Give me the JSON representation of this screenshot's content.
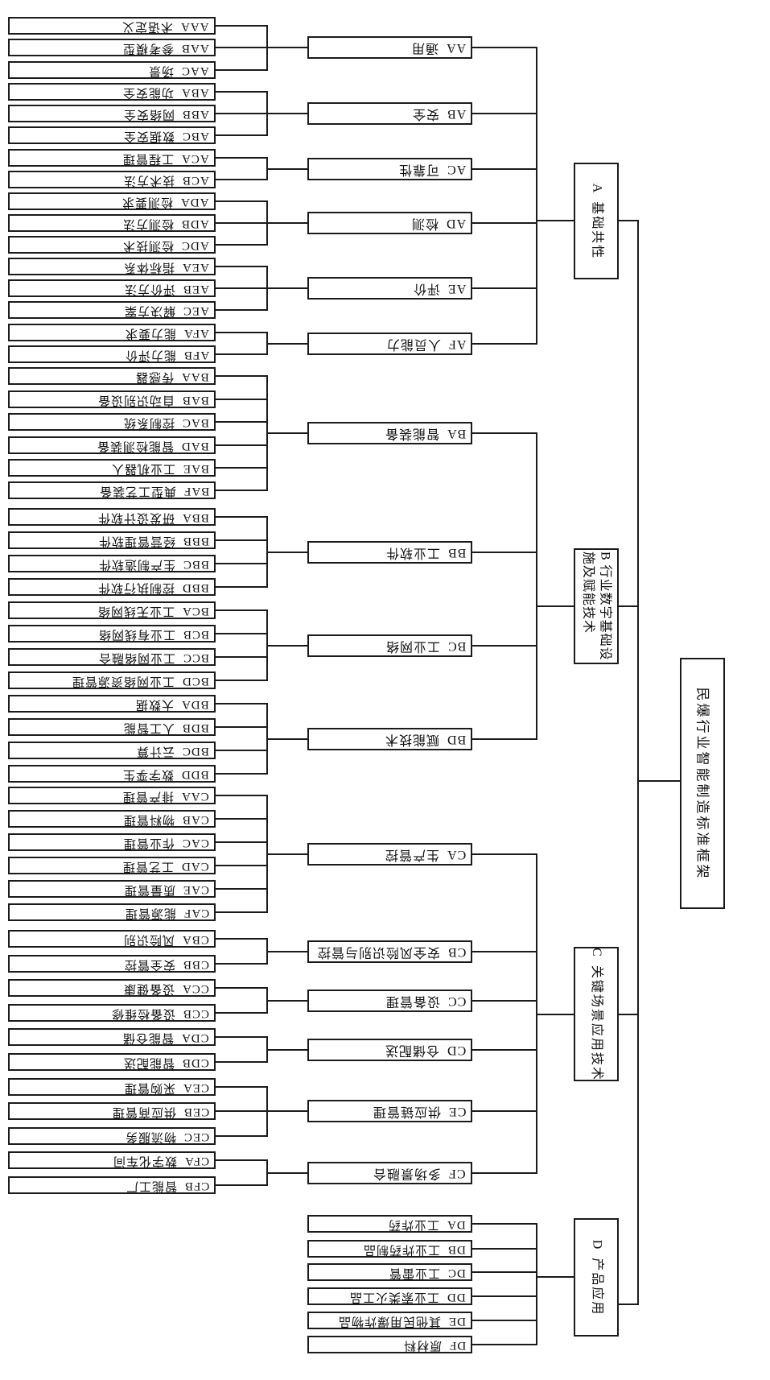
{
  "title": "民爆行业智能制造标准框架",
  "colors": {
    "background": "#ffffff",
    "line": "#1b1b1b",
    "box_border": "#1b1b1b",
    "text": "#111111"
  },
  "tree": {
    "label": "民爆行业智能制造标准框架",
    "children": [
      {
        "code": "A",
        "label": "基础共性",
        "children": [
          {
            "code": "AA",
            "label": "通用",
            "children": [
              {
                "code": "AAA",
                "label": "术语定义"
              },
              {
                "code": "AAB",
                "label": "参考模型"
              },
              {
                "code": "AAC",
                "label": "场景"
              }
            ]
          },
          {
            "code": "AB",
            "label": "安全",
            "children": [
              {
                "code": "ABA",
                "label": "功能安全"
              },
              {
                "code": "ABB",
                "label": "网络安全"
              },
              {
                "code": "ABC",
                "label": "数据安全"
              }
            ]
          },
          {
            "code": "AC",
            "label": "可靠性",
            "children": [
              {
                "code": "ACA",
                "label": "工程管理"
              },
              {
                "code": "ACB",
                "label": "技术方法"
              }
            ]
          },
          {
            "code": "AD",
            "label": "检测",
            "children": [
              {
                "code": "ADA",
                "label": "检测要求"
              },
              {
                "code": "ADB",
                "label": "检测方法"
              },
              {
                "code": "ADC",
                "label": "检测技术"
              }
            ]
          },
          {
            "code": "AE",
            "label": "评价",
            "children": [
              {
                "code": "AEA",
                "label": "指标体系"
              },
              {
                "code": "AEB",
                "label": "评价方法"
              },
              {
                "code": "AEC",
                "label": "解决方案"
              }
            ]
          },
          {
            "code": "AF",
            "label": "人员能力",
            "children": [
              {
                "code": "AFA",
                "label": "能力要求"
              },
              {
                "code": "AFB",
                "label": "能力评价"
              }
            ]
          }
        ]
      },
      {
        "code": "B",
        "label": "行业数字基础设施及赋能技术",
        "lines": [
          "B 行业数字基础设",
          "施及赋能技术"
        ],
        "children": [
          {
            "code": "BA",
            "label": "智能装备",
            "children": [
              {
                "code": "BAA",
                "label": "传感器"
              },
              {
                "code": "BAB",
                "label": "自动识别设备"
              },
              {
                "code": "BAC",
                "label": "控制系统"
              },
              {
                "code": "BAD",
                "label": "智能检测装备"
              },
              {
                "code": "BAE",
                "label": "工业机器人"
              },
              {
                "code": "BAF",
                "label": "典型工艺装备"
              }
            ]
          },
          {
            "code": "BB",
            "label": "工业软件",
            "children": [
              {
                "code": "BBA",
                "label": "研发设计软件"
              },
              {
                "code": "BBB",
                "label": "经营管理软件"
              },
              {
                "code": "BBC",
                "label": "生产制造软件"
              },
              {
                "code": "BBD",
                "label": "控制执行软件"
              }
            ]
          },
          {
            "code": "BC",
            "label": "工业网络",
            "children": [
              {
                "code": "BCA",
                "label": "工业无线网络"
              },
              {
                "code": "BCB",
                "label": "工业有线网络"
              },
              {
                "code": "BCC",
                "label": "工业网络融合"
              },
              {
                "code": "BCD",
                "label": "工业网络资源管理"
              }
            ]
          },
          {
            "code": "BD",
            "label": "赋能技术",
            "children": [
              {
                "code": "BDA",
                "label": "大数据"
              },
              {
                "code": "BDB",
                "label": "人工智能"
              },
              {
                "code": "BDC",
                "label": "云计算"
              },
              {
                "code": "BDD",
                "label": "数字孪生"
              }
            ]
          }
        ]
      },
      {
        "code": "C",
        "label": "关键场景应用技术",
        "children": [
          {
            "code": "CA",
            "label": "生产管控",
            "children": [
              {
                "code": "CAA",
                "label": "排产管理"
              },
              {
                "code": "CAB",
                "label": "物料管理"
              },
              {
                "code": "CAC",
                "label": "作业管理"
              },
              {
                "code": "CAD",
                "label": "工艺管理"
              },
              {
                "code": "CAE",
                "label": "质量管理"
              },
              {
                "code": "CAF",
                "label": "能源管理"
              }
            ]
          },
          {
            "code": "CB",
            "label": "安全风险识别与管控",
            "children": [
              {
                "code": "CBA",
                "label": "风险识别"
              },
              {
                "code": "CBB",
                "label": "安全管控"
              }
            ]
          },
          {
            "code": "CC",
            "label": "设备管理",
            "children": [
              {
                "code": "CCA",
                "label": "设备健康"
              },
              {
                "code": "CCB",
                "label": "设备检维修"
              }
            ]
          },
          {
            "code": "CD",
            "label": "仓储配送",
            "children": [
              {
                "code": "CDA",
                "label": "智能仓储"
              },
              {
                "code": "CDB",
                "label": "智能配送"
              }
            ]
          },
          {
            "code": "CE",
            "label": "供应链管理",
            "children": [
              {
                "code": "CEA",
                "label": "采购管理"
              },
              {
                "code": "CEB",
                "label": "供应商管理"
              },
              {
                "code": "CEC",
                "label": "物流服务"
              }
            ]
          },
          {
            "code": "CF",
            "label": "多场景融合",
            "children": [
              {
                "code": "CFA",
                "label": "数字化车间"
              },
              {
                "code": "CFB",
                "label": "智能工厂"
              }
            ]
          }
        ]
      },
      {
        "code": "D",
        "label": "产品应用",
        "children": [
          {
            "code": "DA",
            "label": "工业炸药"
          },
          {
            "code": "DB",
            "label": "工业炸药制品"
          },
          {
            "code": "DC",
            "label": "工业雷管"
          },
          {
            "code": "DD",
            "label": "工业索类火工品"
          },
          {
            "code": "DE",
            "label": "其他民用爆炸物品"
          },
          {
            "code": "DF",
            "label": "原材料"
          }
        ]
      }
    ]
  }
}
